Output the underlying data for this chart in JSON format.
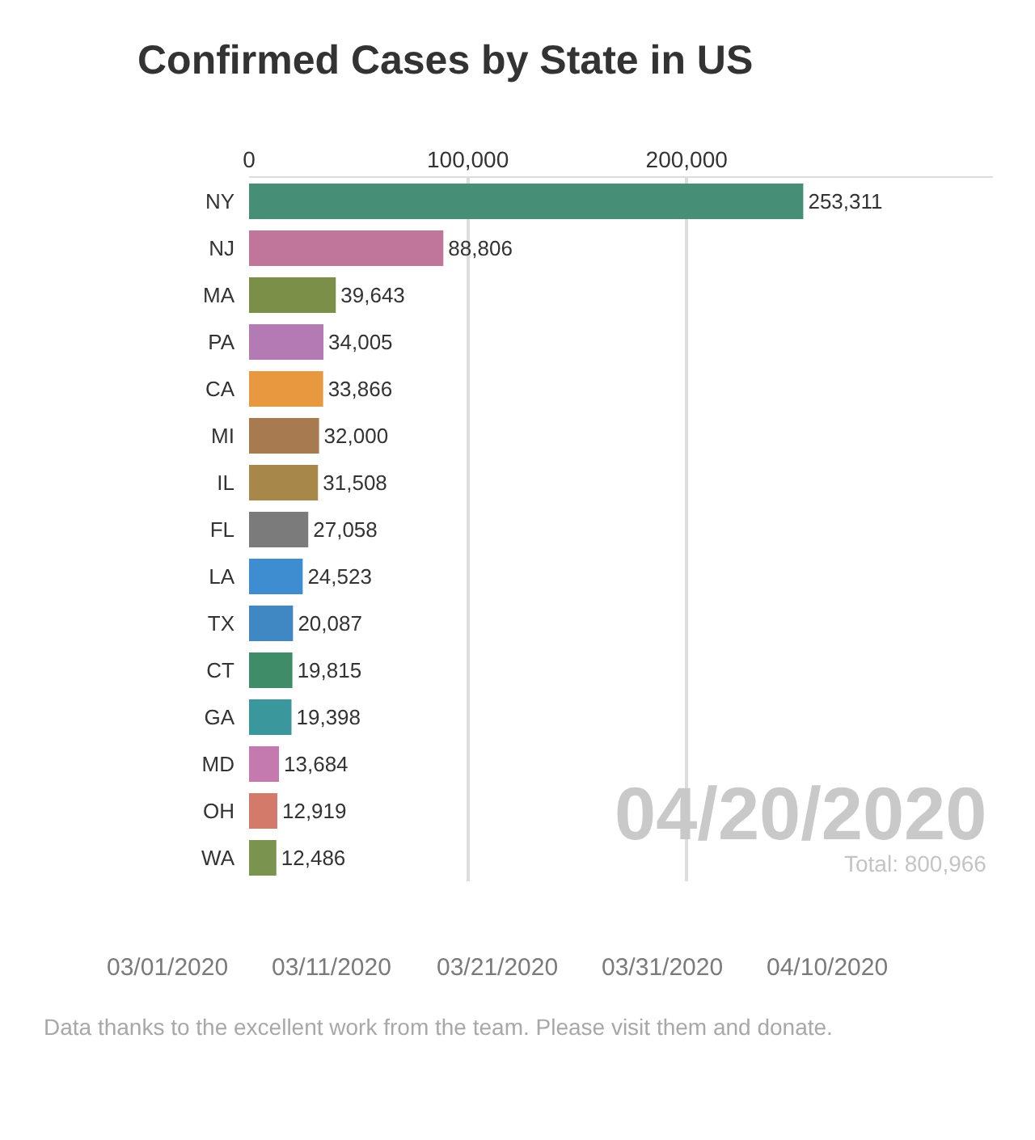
{
  "chart_data": {
    "type": "bar",
    "orientation": "horizontal",
    "title": "Confirmed Cases by State in US",
    "categories": [
      "NY",
      "NJ",
      "MA",
      "PA",
      "CA",
      "MI",
      "IL",
      "FL",
      "LA",
      "TX",
      "CT",
      "GA",
      "MD",
      "OH",
      "WA"
    ],
    "values": [
      253311,
      88806,
      39643,
      34005,
      33866,
      32000,
      31508,
      27058,
      24523,
      20087,
      19815,
      19398,
      13684,
      12919,
      12486
    ],
    "value_labels": [
      "253,311",
      "88,806",
      "39,643",
      "34,005",
      "33,866",
      "32,000",
      "31,508",
      "27,058",
      "24,523",
      "20,087",
      "19,815",
      "19,398",
      "13,684",
      "12,919",
      "12,486"
    ],
    "colors": [
      "#468f76",
      "#c0769a",
      "#7b8f48",
      "#b47ab4",
      "#e8983e",
      "#a87a50",
      "#a8884a",
      "#7b7b7b",
      "#3d8dd0",
      "#3f88c4",
      "#3f8c68",
      "#3a979c",
      "#c47aae",
      "#d37a6a",
      "#7a9450"
    ],
    "xlim": [
      0,
      340000
    ],
    "xticks": [
      0,
      {
        "value": 100000,
        "label": "100,000"
      },
      {
        "value": 200000,
        "label": "200,000"
      }
    ],
    "grid": "x",
    "annotations": [
      "04/20/2020",
      "Total: 800,966",
      "03/01/2020",
      "03/11/2020",
      "03/21/2020",
      "03/31/2020",
      "04/10/2020",
      "Data thanks to the excellent work from the team. Please visit them and donate."
    ]
  }
}
